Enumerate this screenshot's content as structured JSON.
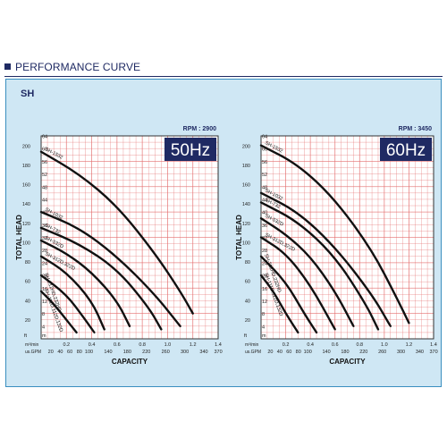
{
  "header": {
    "title": "PERFORMANCE CURVE"
  },
  "panel": {
    "title": "SH"
  },
  "colors": {
    "accent": "#1f2a63",
    "panel_bg": "#cfe7f4",
    "grid": "#e36a6a",
    "curve": "#111111"
  },
  "chart_data": [
    {
      "type": "line",
      "badge": "50Hz",
      "rpm": "RPM : 2900",
      "ylabel": "TOTAL HEAD",
      "xlabel": "CAPACITY",
      "y_unit_ft": "ft",
      "y_unit_m": "m",
      "x_unit_m3": "m³/min",
      "x_unit_gpm": "us.GPM",
      "xlim": [
        0,
        1.4
      ],
      "ylim": [
        0,
        64
      ],
      "x_ticks": [
        "0.2",
        "0.4",
        "0.6",
        "0.8",
        "1.0",
        "1.2",
        "1.4"
      ],
      "gpm_ticks": [
        "20",
        "40",
        "60",
        "80",
        "100",
        "140",
        "180",
        "220",
        "260",
        "300",
        "340",
        "370"
      ],
      "y_ticks_m": [
        "4",
        "8",
        "12",
        "16",
        "20",
        "24",
        "28",
        "32",
        "36",
        "40",
        "44",
        "48",
        "52",
        "56",
        "60",
        "64"
      ],
      "y_ticks_ft": [
        "20",
        "40",
        "60",
        "80",
        "100",
        "120",
        "140",
        "160",
        "180",
        "200"
      ],
      "series": [
        {
          "name": "SH-1532",
          "x": [
            0,
            0.3,
            0.6,
            0.9,
            1.1,
            1.2
          ],
          "y": [
            59,
            52,
            42,
            27,
            15,
            8
          ]
        },
        {
          "name": "SH-1032",
          "x": [
            0,
            0.3,
            0.6,
            0.9,
            1.1
          ],
          "y": [
            40,
            35,
            26,
            14,
            4
          ]
        },
        {
          "name": "SH-732",
          "x": [
            0,
            0.3,
            0.6,
            0.85,
            0.95
          ],
          "y": [
            35,
            30,
            22,
            10,
            3
          ]
        },
        {
          "name": "SH-532D",
          "x": [
            0,
            0.2,
            0.4,
            0.6,
            0.7
          ],
          "y": [
            31,
            27,
            21,
            12,
            4
          ]
        },
        {
          "name": "SH-312D,322D",
          "x": [
            0,
            0.2,
            0.4,
            0.5
          ],
          "y": [
            26,
            21,
            12,
            3
          ]
        },
        {
          "name": "SH-212HD,232HD",
          "x": [
            0,
            0.2,
            0.35,
            0.42
          ],
          "y": [
            20,
            14,
            6,
            2
          ]
        },
        {
          "name": "SH-111D,112D,132D",
          "x": [
            0,
            0.1,
            0.2,
            0.28
          ],
          "y": [
            15,
            11,
            6,
            2
          ]
        }
      ]
    },
    {
      "type": "line",
      "badge": "60Hz",
      "rpm": "RPM : 3450",
      "ylabel": "TOTAL HEAD",
      "xlabel": "CAPACITY",
      "y_unit_ft": "ft",
      "y_unit_m": "m",
      "x_unit_m3": "m³/min",
      "x_unit_gpm": "us.GPM",
      "xlim": [
        0,
        1.4
      ],
      "ylim": [
        0,
        64
      ],
      "x_ticks": [
        "0.2",
        "0.4",
        "0.6",
        "0.8",
        "1.0",
        "1.2",
        "1.4"
      ],
      "gpm_ticks": [
        "20",
        "40",
        "60",
        "80",
        "100",
        "140",
        "180",
        "220",
        "260",
        "300",
        "340",
        "370"
      ],
      "y_ticks_m": [
        "4",
        "8",
        "12",
        "16",
        "20",
        "24",
        "28",
        "32",
        "36",
        "40",
        "44",
        "48",
        "52",
        "56",
        "60",
        "64"
      ],
      "y_ticks_ft": [
        "20",
        "40",
        "60",
        "80",
        "100",
        "120",
        "140",
        "160",
        "180",
        "200"
      ],
      "series": [
        {
          "name": "SH-1532",
          "x": [
            0,
            0.3,
            0.6,
            0.9,
            1.1,
            1.2
          ],
          "y": [
            61,
            55,
            44,
            28,
            13,
            5
          ]
        },
        {
          "name": "SH-1032",
          "x": [
            0,
            0.3,
            0.6,
            0.9,
            1.05
          ],
          "y": [
            46,
            40,
            29,
            14,
            4
          ]
        },
        {
          "name": "SH-732",
          "x": [
            0,
            0.3,
            0.6,
            0.85,
            0.95
          ],
          "y": [
            43,
            37,
            26,
            11,
            3
          ]
        },
        {
          "name": "SH-532D",
          "x": [
            0,
            0.2,
            0.4,
            0.6,
            0.75
          ],
          "y": [
            38,
            33,
            26,
            15,
            4
          ]
        },
        {
          "name": "SH-312D,322D",
          "x": [
            0,
            0.2,
            0.4,
            0.6
          ],
          "y": [
            32,
            27,
            17,
            3
          ]
        },
        {
          "name": "SH-212HD,232HD",
          "x": [
            0,
            0.2,
            0.35,
            0.45
          ],
          "y": [
            26,
            18,
            8,
            2
          ]
        },
        {
          "name": "SH-111D,112D,132D",
          "x": [
            0,
            0.1,
            0.2,
            0.3
          ],
          "y": [
            20,
            15,
            8,
            2
          ]
        }
      ]
    }
  ]
}
